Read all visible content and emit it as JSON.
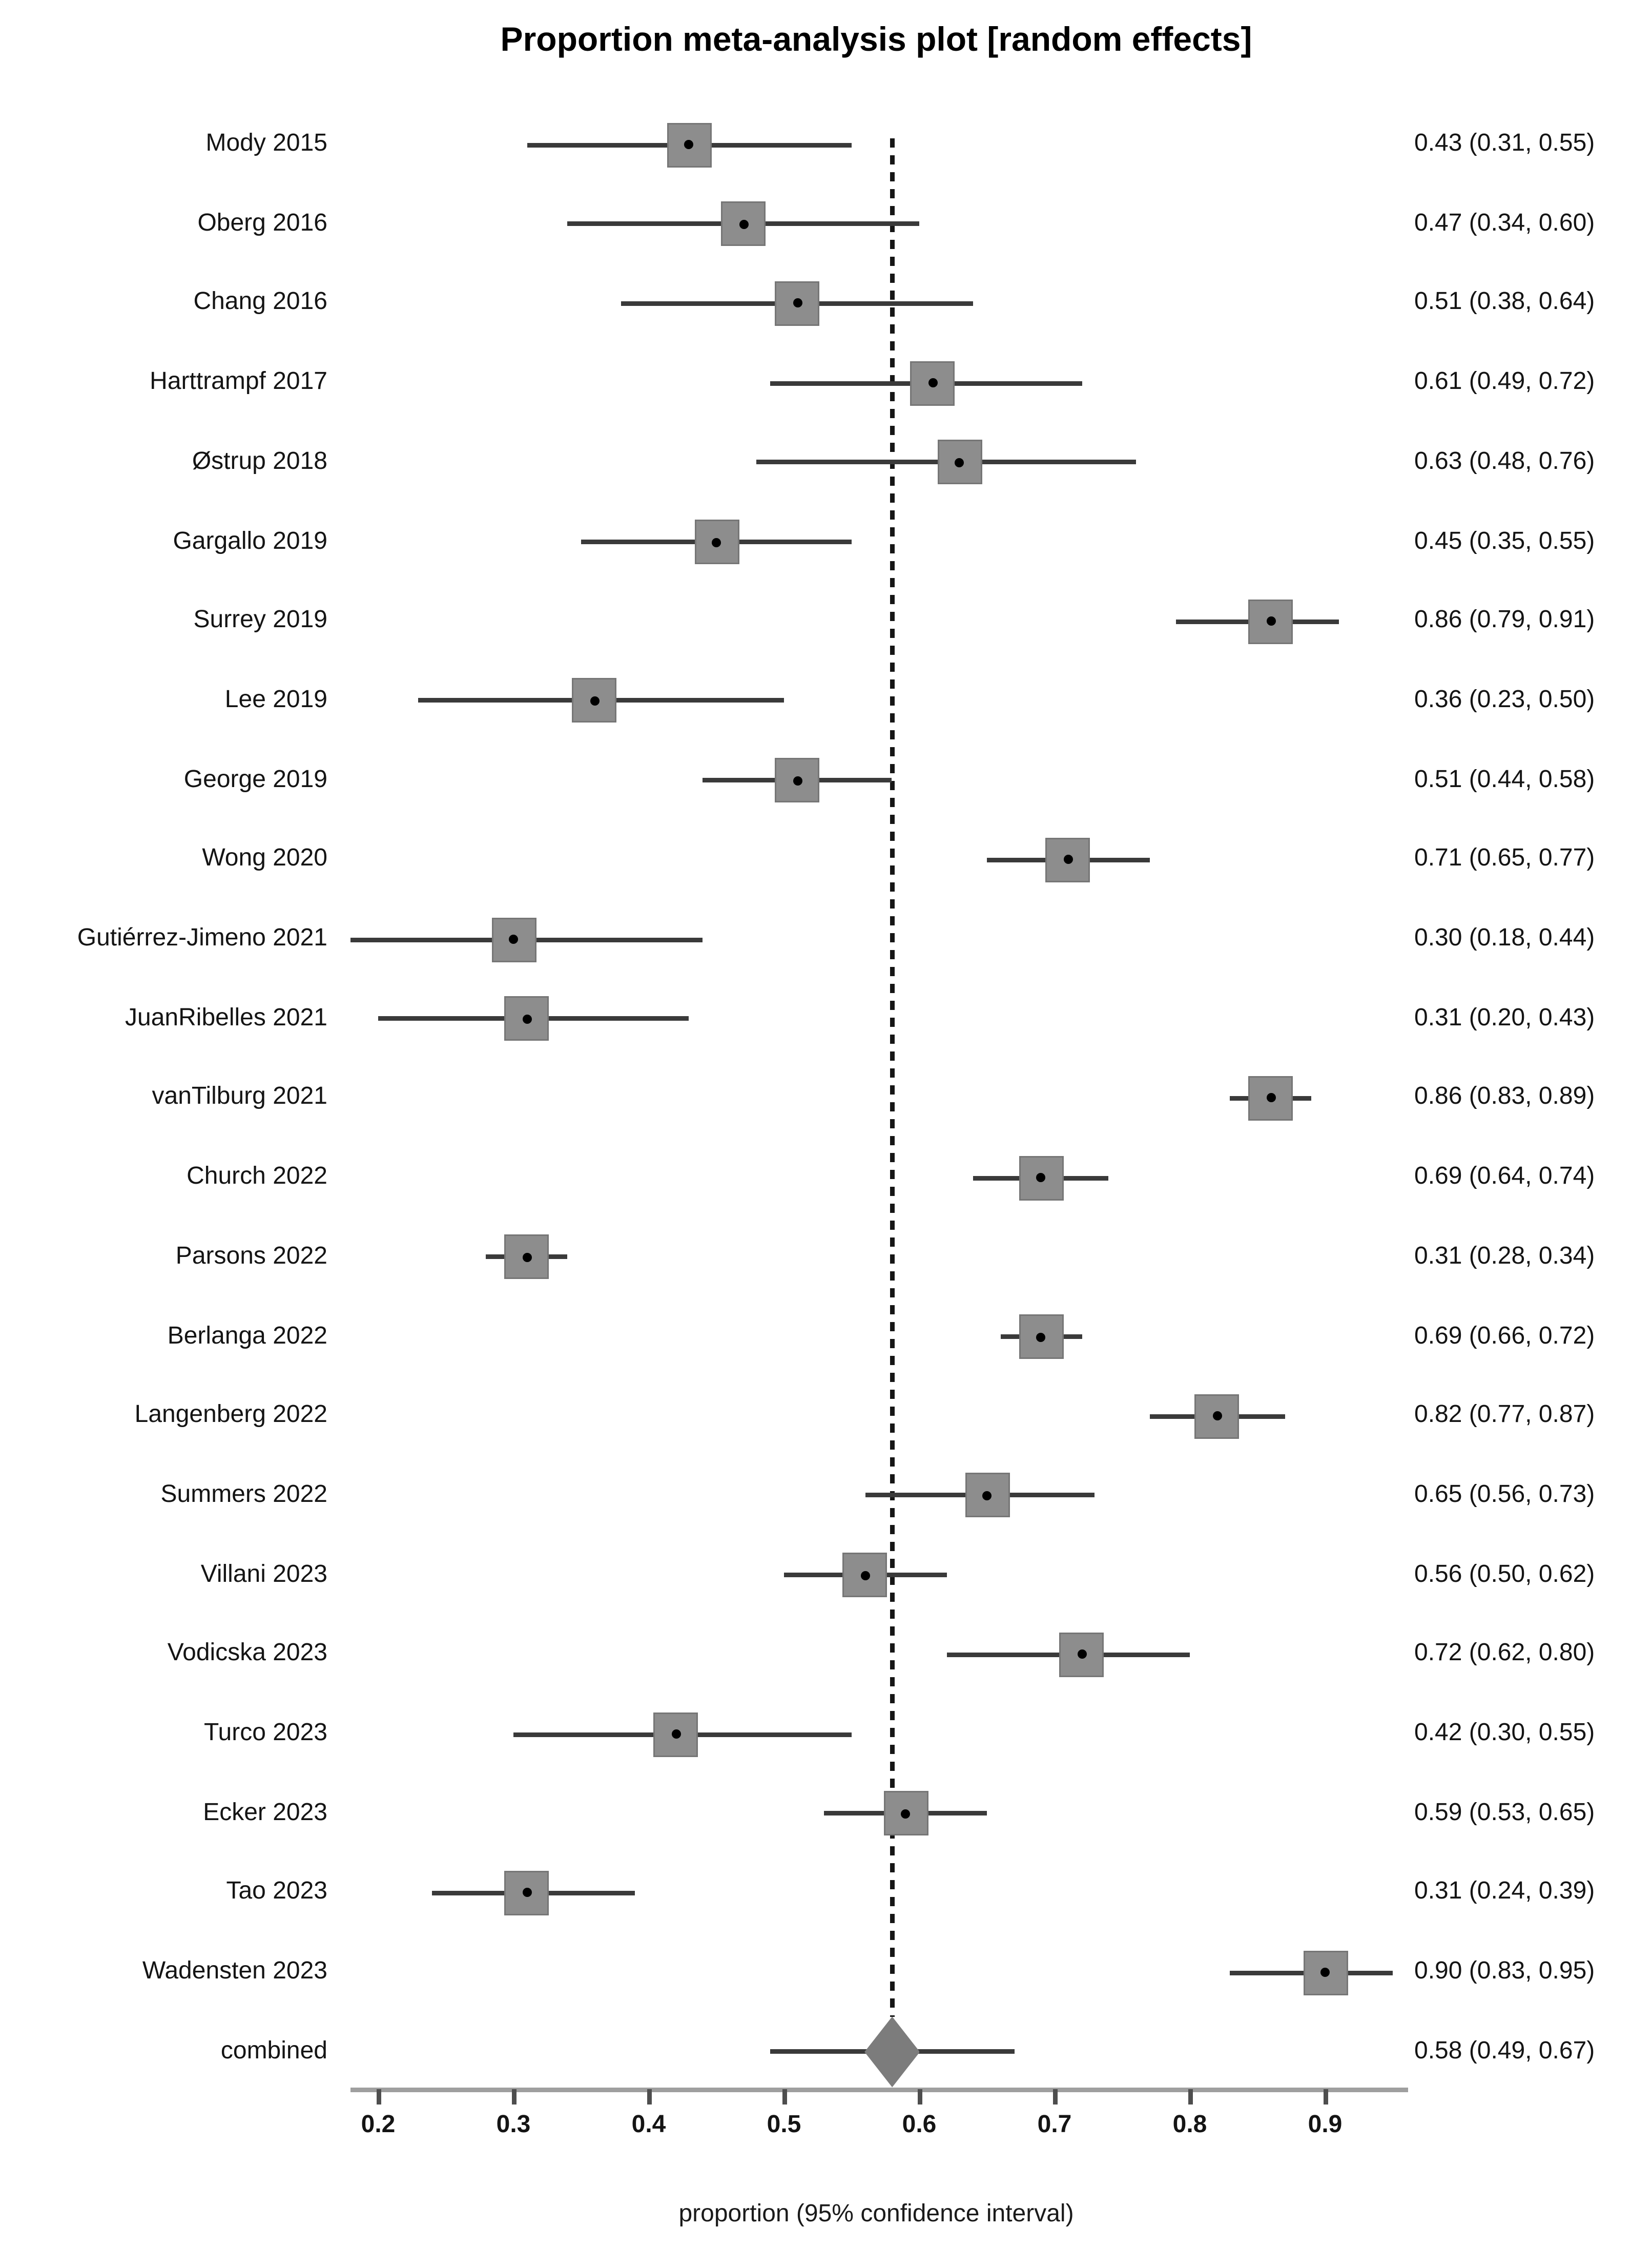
{
  "figure": {
    "title": "Proportion meta-analysis plot [random effects]",
    "xlabel": "proportion (95% confidence interval)"
  },
  "chart_data": {
    "type": "scatter",
    "variant": "forest-plot",
    "title": "Proportion meta-analysis plot [random effects]",
    "xlabel": "proportion (95% confidence interval)",
    "xlim": [
      0.168,
      0.962
    ],
    "x_ticks": [
      0.2,
      0.3,
      0.4,
      0.5,
      0.6,
      0.7,
      0.8,
      0.9
    ],
    "x_tick_labels": [
      "0.2",
      "0.3",
      "0.4",
      "0.5",
      "0.6",
      "0.7",
      "0.8",
      "0.9"
    ],
    "grid": false,
    "legend": false,
    "dashed_reference_x": 0.58,
    "colors": {
      "marker_box": "#8d8d8d",
      "ci_line": "#3a3a3a",
      "diamond": "#7c7c7c",
      "axis_line": "#9f9f9f",
      "tick": "#4e4e4e",
      "dashed_line": "#161616",
      "text": "#141414"
    },
    "studies": [
      {
        "label": "Mody 2015",
        "estimate": 0.43,
        "ci_low": 0.31,
        "ci_high": 0.55,
        "text": "0.43 (0.31, 0.55)"
      },
      {
        "label": "Oberg 2016",
        "estimate": 0.47,
        "ci_low": 0.34,
        "ci_high": 0.6,
        "text": "0.47 (0.34, 0.60)"
      },
      {
        "label": "Chang 2016",
        "estimate": 0.51,
        "ci_low": 0.38,
        "ci_high": 0.64,
        "text": "0.51 (0.38, 0.64)"
      },
      {
        "label": "Harttrampf 2017",
        "estimate": 0.61,
        "ci_low": 0.49,
        "ci_high": 0.72,
        "text": "0.61 (0.49, 0.72)"
      },
      {
        "label": "Østrup  2018",
        "estimate": 0.63,
        "ci_low": 0.48,
        "ci_high": 0.76,
        "text": "0.63 (0.48, 0.76)"
      },
      {
        "label": "Gargallo 2019",
        "estimate": 0.45,
        "ci_low": 0.35,
        "ci_high": 0.55,
        "text": "0.45 (0.35, 0.55)"
      },
      {
        "label": "Surrey 2019",
        "estimate": 0.86,
        "ci_low": 0.79,
        "ci_high": 0.91,
        "text": "0.86 (0.79, 0.91)"
      },
      {
        "label": "Lee 2019",
        "estimate": 0.36,
        "ci_low": 0.23,
        "ci_high": 0.5,
        "text": "0.36 (0.23, 0.50)"
      },
      {
        "label": "George 2019",
        "estimate": 0.51,
        "ci_low": 0.44,
        "ci_high": 0.58,
        "text": "0.51 (0.44, 0.58)"
      },
      {
        "label": "Wong 2020",
        "estimate": 0.71,
        "ci_low": 0.65,
        "ci_high": 0.77,
        "text": "0.71 (0.65, 0.77)"
      },
      {
        "label": "Gutiérrez-Jimeno 2021",
        "estimate": 0.3,
        "ci_low": 0.18,
        "ci_high": 0.44,
        "text": "0.30 (0.18, 0.44)"
      },
      {
        "label": "JuanRibelles 2021",
        "estimate": 0.31,
        "ci_low": 0.2,
        "ci_high": 0.43,
        "text": "0.31 (0.20, 0.43)"
      },
      {
        "label": "vanTilburg 2021",
        "estimate": 0.86,
        "ci_low": 0.83,
        "ci_high": 0.89,
        "text": "0.86 (0.83, 0.89)"
      },
      {
        "label": "Church 2022",
        "estimate": 0.69,
        "ci_low": 0.64,
        "ci_high": 0.74,
        "text": "0.69 (0.64, 0.74)"
      },
      {
        "label": "Parsons 2022",
        "estimate": 0.31,
        "ci_low": 0.28,
        "ci_high": 0.34,
        "text": "0.31 (0.28, 0.34)"
      },
      {
        "label": "Berlanga 2022",
        "estimate": 0.69,
        "ci_low": 0.66,
        "ci_high": 0.72,
        "text": "0.69 (0.66, 0.72)"
      },
      {
        "label": "Langenberg 2022",
        "estimate": 0.82,
        "ci_low": 0.77,
        "ci_high": 0.87,
        "text": "0.82 (0.77, 0.87)"
      },
      {
        "label": "Summers 2022",
        "estimate": 0.65,
        "ci_low": 0.56,
        "ci_high": 0.73,
        "text": "0.65 (0.56, 0.73)"
      },
      {
        "label": "Villani 2023",
        "estimate": 0.56,
        "ci_low": 0.5,
        "ci_high": 0.62,
        "text": "0.56 (0.50, 0.62)"
      },
      {
        "label": "Vodicska 2023",
        "estimate": 0.72,
        "ci_low": 0.62,
        "ci_high": 0.8,
        "text": "0.72 (0.62, 0.80)"
      },
      {
        "label": "Turco 2023",
        "estimate": 0.42,
        "ci_low": 0.3,
        "ci_high": 0.55,
        "text": "0.42 (0.30, 0.55)"
      },
      {
        "label": "Ecker 2023",
        "estimate": 0.59,
        "ci_low": 0.53,
        "ci_high": 0.65,
        "text": "0.59 (0.53, 0.65)"
      },
      {
        "label": "Tao 2023",
        "estimate": 0.31,
        "ci_low": 0.24,
        "ci_high": 0.39,
        "text": "0.31 (0.24, 0.39)"
      },
      {
        "label": "Wadensten 2023",
        "estimate": 0.9,
        "ci_low": 0.83,
        "ci_high": 0.95,
        "text": "0.90 (0.83, 0.95)"
      }
    ],
    "combined": {
      "label": "combined",
      "estimate": 0.58,
      "ci_low": 0.49,
      "ci_high": 0.67,
      "text": "0.58 (0.49, 0.67)"
    }
  }
}
